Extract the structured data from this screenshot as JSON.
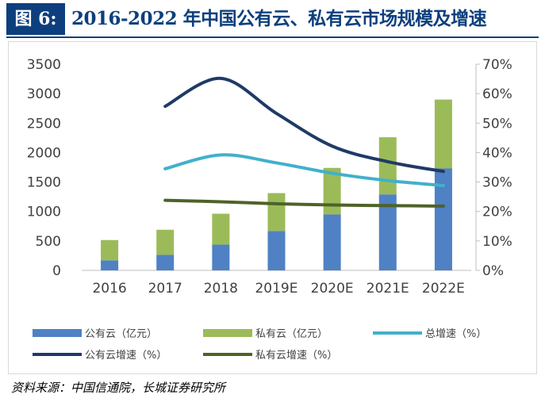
{
  "header": {
    "figure_label": "图 6:",
    "title": "2016-2022 年中国公有云、私有云市场规模及增速"
  },
  "source": "资料来源：中国信通院，长城证券研究所",
  "colors": {
    "title": "#0d3f7e",
    "public_bar": "#4f81c4",
    "private_bar": "#9bbb59",
    "total_growth": "#41b0cc",
    "public_growth": "#1f3a66",
    "private_growth": "#4f6228"
  },
  "chart_data": {
    "type": "bar",
    "stacked": true,
    "categories": [
      "2016",
      "2017",
      "2018",
      "2019E",
      "2020E",
      "2021E",
      "2022E"
    ],
    "left_axis": {
      "range": [
        0,
        3500
      ],
      "ticks": [
        "0",
        "500",
        "1000",
        "1500",
        "2000",
        "2500",
        "3000",
        "3500"
      ]
    },
    "right_axis": {
      "range": [
        0,
        70
      ],
      "ticks": [
        "0%",
        "10%",
        "20%",
        "30%",
        "40%",
        "50%",
        "60%",
        "70%"
      ]
    },
    "series": [
      {
        "name": "公有云（亿元）",
        "kind": "bar",
        "axis": "left",
        "color": "#4f81c4",
        "values": [
          170,
          264,
          437,
          670,
          950,
          1290,
          1730
        ]
      },
      {
        "name": "私有云（亿元）",
        "kind": "bar",
        "axis": "left",
        "color": "#9bbb59",
        "values": [
          345,
          426,
          525,
          642,
          790,
          970,
          1170
        ]
      },
      {
        "name": "总增速（%）",
        "kind": "line",
        "axis": "right",
        "color": "#41b0cc",
        "values": [
          null,
          34.5,
          39.2,
          36.5,
          33.0,
          30.5,
          28.8
        ]
      },
      {
        "name": "公有云增速（%）",
        "kind": "line",
        "axis": "right",
        "color": "#1f3a66",
        "values": [
          null,
          55.7,
          65.2,
          53.3,
          42.2,
          36.9,
          33.6
        ]
      },
      {
        "name": "私有云增速（%）",
        "kind": "line",
        "axis": "right",
        "color": "#4f6228",
        "values": [
          null,
          23.8,
          23.3,
          22.6,
          22.2,
          22.0,
          21.8
        ]
      }
    ],
    "legend": {
      "position": "bottom",
      "rows": [
        [
          "公有云（亿元）",
          "私有云（亿元）",
          "总增速（%）"
        ],
        [
          "公有云增速（%）",
          "私有云增速（%）"
        ]
      ]
    }
  }
}
